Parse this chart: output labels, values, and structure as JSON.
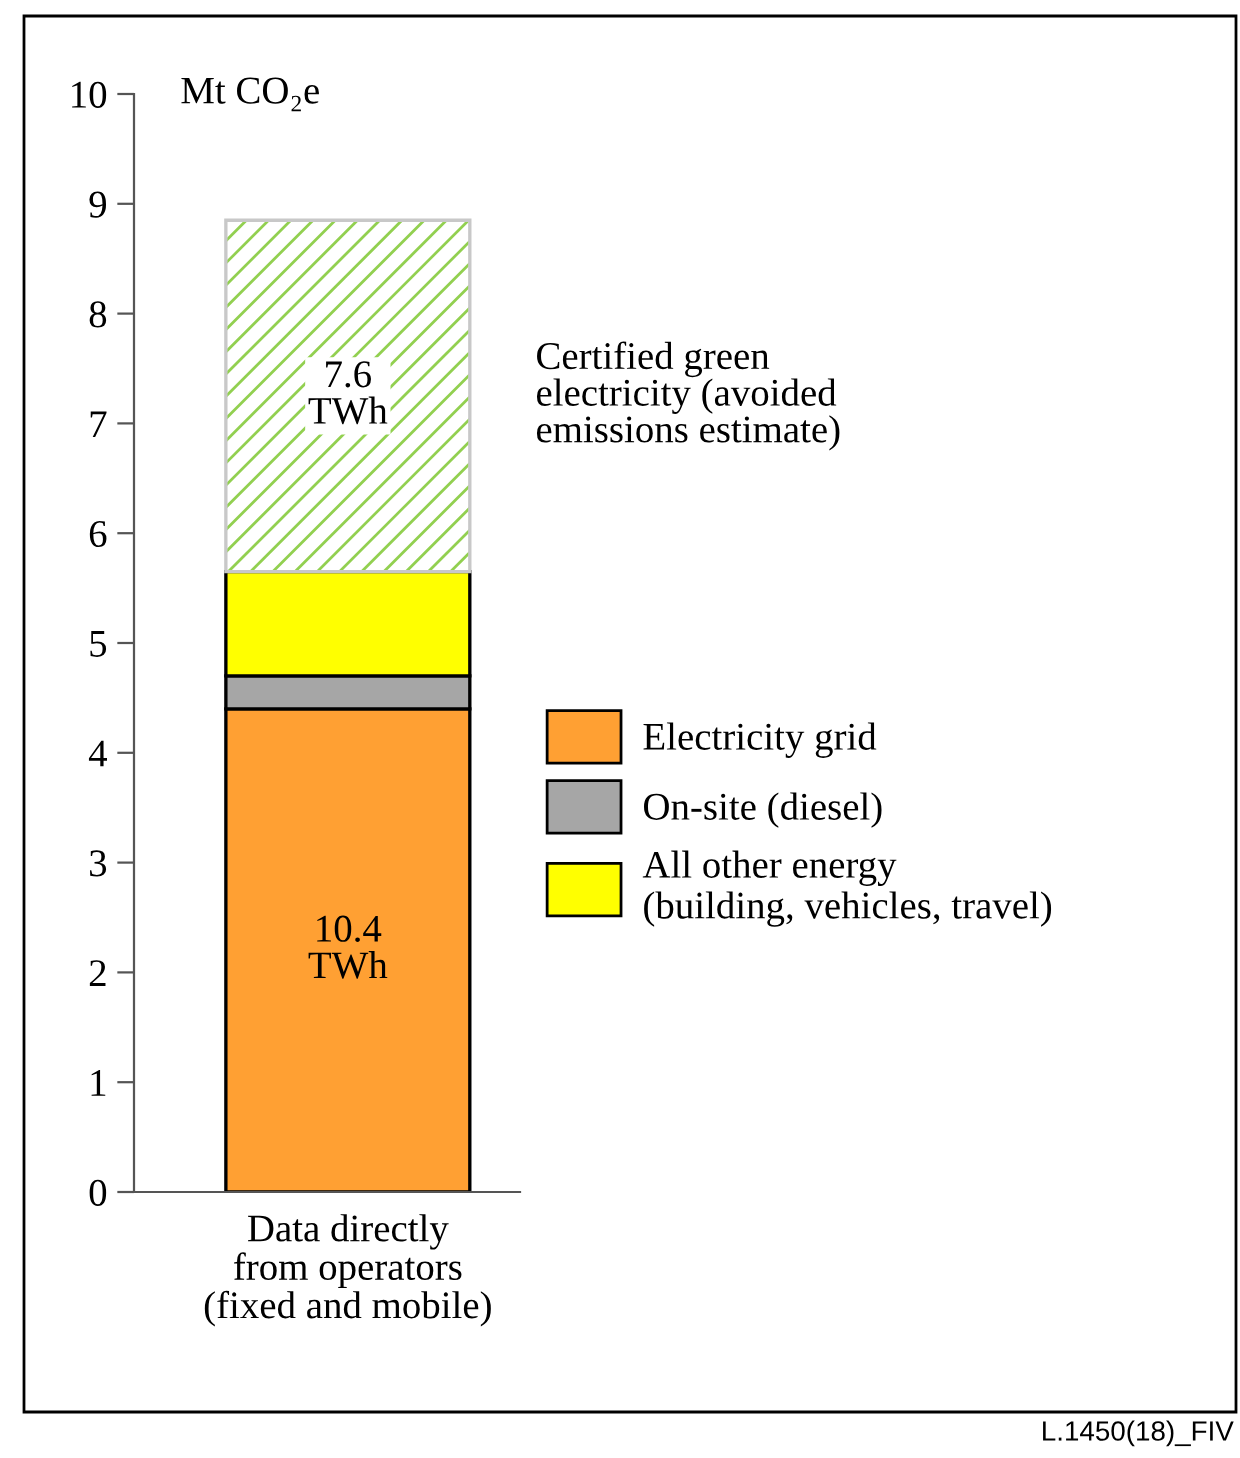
{
  "chart_data": {
    "type": "bar",
    "stacked": true,
    "ylabel": "Mt CO₂e",
    "categories": [
      "Data directly\nfrom operators\n(fixed and mobile)"
    ],
    "series": [
      {
        "name": "Electricity grid",
        "color": "#ffa033",
        "values": [
          4.4
        ]
      },
      {
        "name": "On-site (diesel)",
        "color": "#a6a6a6",
        "values": [
          0.3
        ]
      },
      {
        "name": "All other energy\n(building, vehicles, travel)",
        "color": "#ffff00",
        "values": [
          0.95
        ]
      },
      {
        "name": "Certified green\nelectricity (avoided\nemissions estimate)",
        "color": "#92d050",
        "values": [
          3.2
        ]
      }
    ],
    "ylim": [
      0,
      10
    ],
    "yticks": [
      0,
      1,
      2,
      3,
      4,
      5,
      6,
      7,
      8,
      9,
      10
    ],
    "annotations": [
      "10.4\nTWh",
      "7.6\nTWh",
      "L.1450(18)_FIV"
    ],
    "legend": "right",
    "grid": false
  }
}
